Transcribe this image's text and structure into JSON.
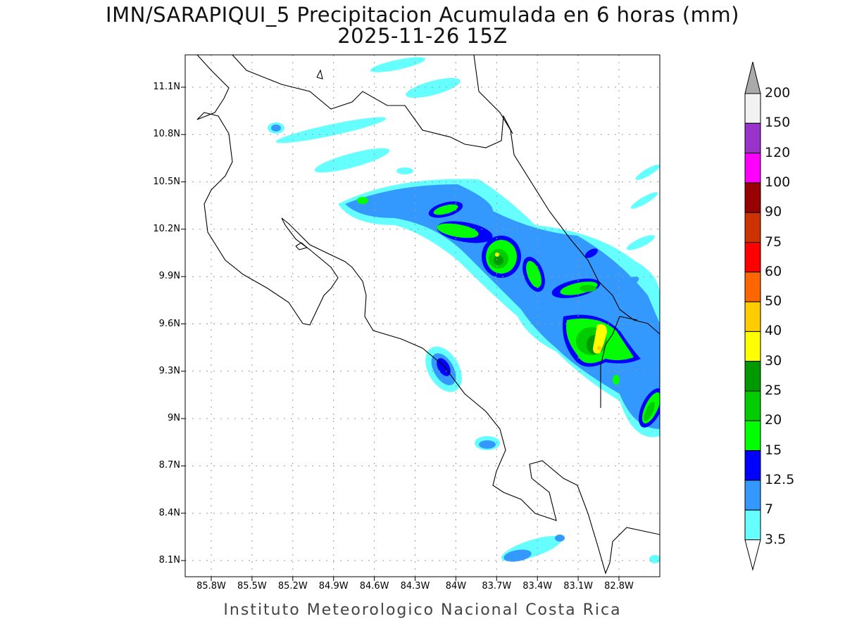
{
  "title": "IMN/SARAPIQUI_5 Precipitacion Acumulada en 6 horas (mm)",
  "subtitle": "2025-11-26 15Z",
  "footer": "Instituto Meteorologico Nacional Costa Rica",
  "lat_ticks": [
    "11.1N",
    "10.8N",
    "10.5N",
    "10.2N",
    "9.9N",
    "9.6N",
    "9.3N",
    "9N",
    "8.7N",
    "8.4N",
    "8.1N"
  ],
  "lon_ticks": [
    "85.8W",
    "85.5W",
    "85.2W",
    "84.9W",
    "84.6W",
    "84.3W",
    "84W",
    "83.7W",
    "83.4W",
    "83.1W",
    "82.8W"
  ],
  "colorbar": {
    "labels": [
      "200",
      "150",
      "120",
      "100",
      "90",
      "75",
      "60",
      "50",
      "40",
      "30",
      "25",
      "20",
      "15",
      "12.5",
      "7",
      "3.5"
    ],
    "colors": [
      "#f2f2f2",
      "#9933cc",
      "#ff00ff",
      "#990000",
      "#cc3300",
      "#ff0000",
      "#ff6600",
      "#ffcc00",
      "#ffff00",
      "#009900",
      "#00cc00",
      "#00ff00",
      "#0000ff",
      "#3399ff",
      "#66ffff"
    ],
    "over_color": "#aaaaaa",
    "under_color": "#ffffff"
  }
}
